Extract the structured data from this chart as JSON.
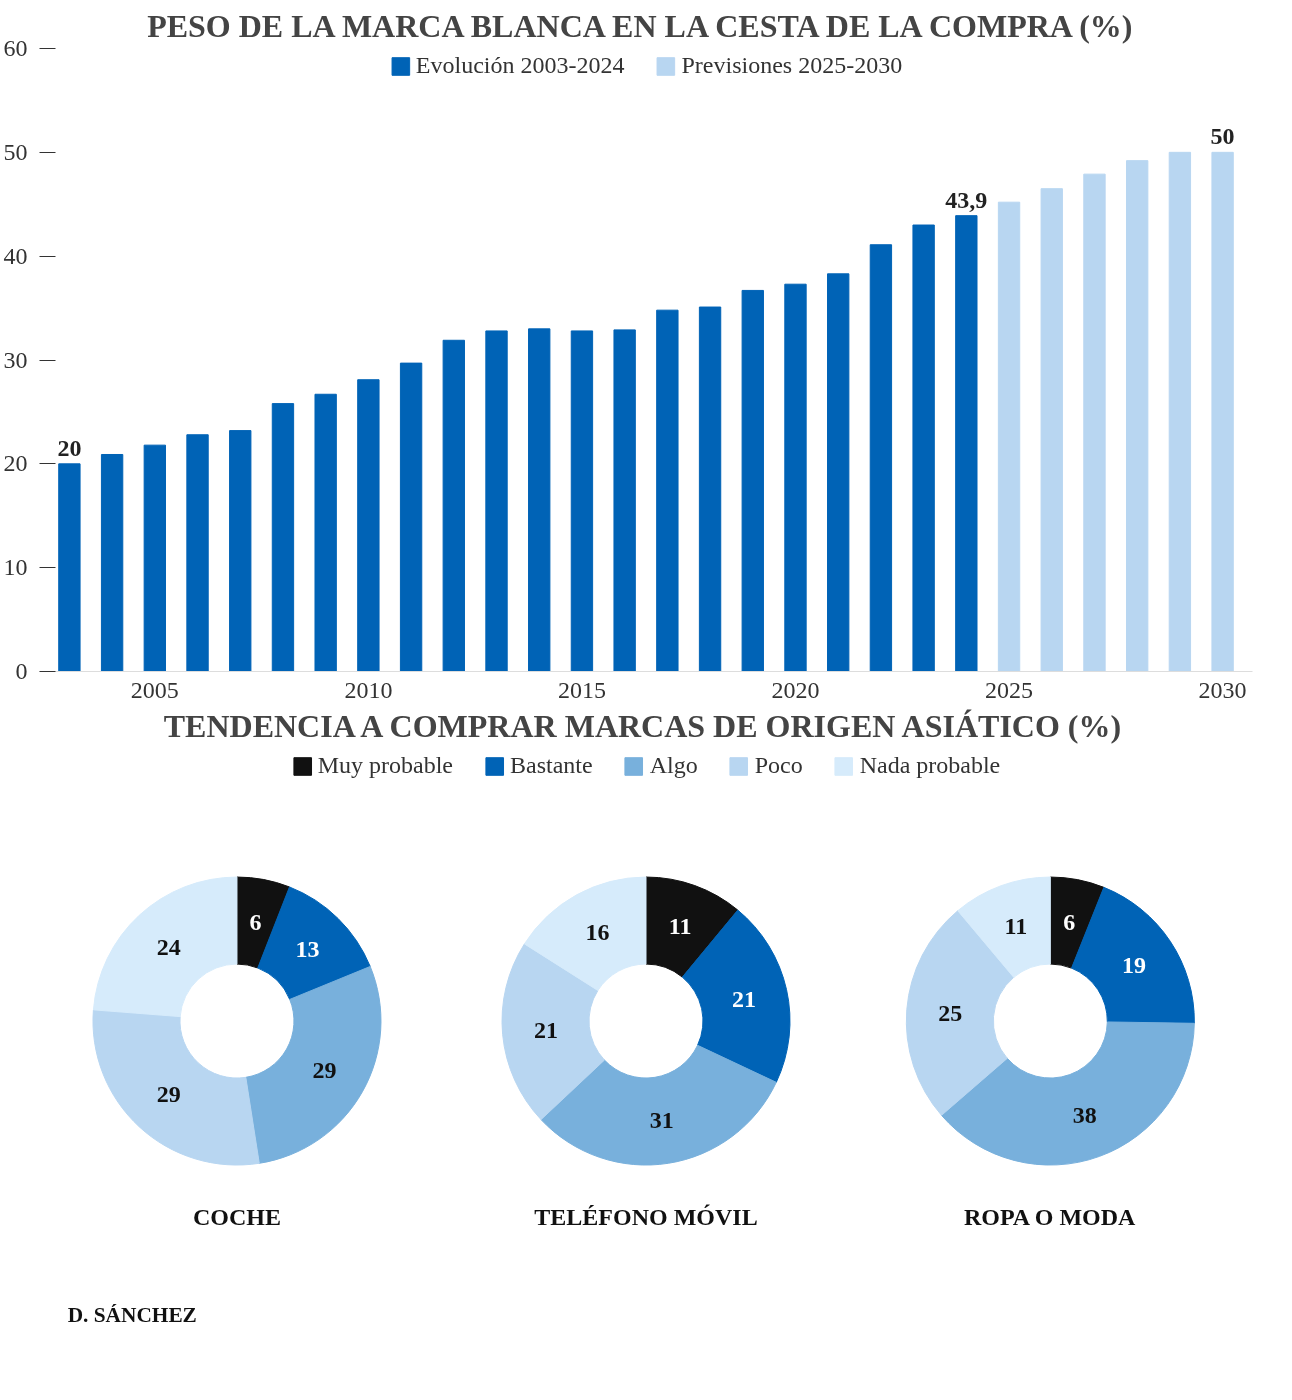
{
  "chart_data": [
    {
      "type": "bar",
      "title": "PESO DE LA MARCA BLANCA EN LA CESTA DE LA COMPRA (%)",
      "legend": "top",
      "grid": false,
      "xlim": [
        2002.3,
        2030.7
      ],
      "ylim": [
        0,
        60
      ],
      "xticks": [
        2005,
        2010,
        2015,
        2020,
        2025,
        2030
      ],
      "yticks": [
        0,
        10,
        20,
        30,
        40,
        50,
        60
      ],
      "series": [
        {
          "name": "Evolución 2003-2024",
          "color": "#0063b6",
          "x": [
            2003,
            2004,
            2005,
            2006,
            2007,
            2008,
            2009,
            2010,
            2011,
            2012,
            2013,
            2014,
            2015,
            2016,
            2017,
            2018,
            2019,
            2020,
            2021,
            2022,
            2023,
            2024
          ],
          "values": [
            20,
            20.9,
            21.8,
            22.8,
            23.2,
            25.8,
            26.7,
            28.1,
            29.7,
            31.9,
            32.8,
            33.0,
            32.8,
            32.9,
            34.8,
            35.1,
            36.7,
            37.3,
            38.3,
            41.1,
            43.0,
            43.9
          ],
          "value_labels": [
            "20",
            null,
            null,
            null,
            null,
            null,
            null,
            null,
            null,
            null,
            null,
            null,
            null,
            null,
            null,
            null,
            null,
            null,
            null,
            null,
            null,
            "43,9"
          ]
        },
        {
          "name": "Previsiones 2025-2030",
          "color": "#b8d6f1",
          "x": [
            2025,
            2026,
            2027,
            2028,
            2029,
            2030
          ],
          "values": [
            45.2,
            46.5,
            47.9,
            49.2,
            50.0,
            50
          ],
          "value_labels": [
            null,
            null,
            null,
            null,
            null,
            "50"
          ]
        }
      ]
    },
    {
      "type": "donut",
      "title": "TENDENCIA A COMPRAR MARCAS DE ORIGEN ASIÁTICO (%)",
      "legend": "top",
      "xlabel": "COCHE",
      "data_labels": true,
      "categories": [
        "Muy probable",
        "Bastante",
        "Algo",
        "Poco",
        "Nada probable"
      ],
      "values": [
        6,
        13,
        29,
        29,
        24
      ],
      "colors": [
        "#111111",
        "#0063b6",
        "#78b0dc",
        "#b8d6f1",
        "#d6ebfb"
      ]
    },
    {
      "type": "donut",
      "xlabel": "TELÉFONO MÓVIL",
      "data_labels": true,
      "values": [
        11,
        21,
        31,
        21,
        16
      ],
      "colors": [
        "#111111",
        "#0063b6",
        "#78b0dc",
        "#b8d6f1",
        "#d6ebfb"
      ]
    },
    {
      "type": "donut",
      "xlabel": "ROPA O MODA",
      "data_labels": true,
      "values": [
        6,
        19,
        38,
        25,
        11
      ],
      "colors": [
        "#111111",
        "#0063b6",
        "#78b0dc",
        "#b8d6f1",
        "#d6ebfb"
      ],
      "annotations": [
        "D. SÁNCHEZ"
      ]
    }
  ]
}
